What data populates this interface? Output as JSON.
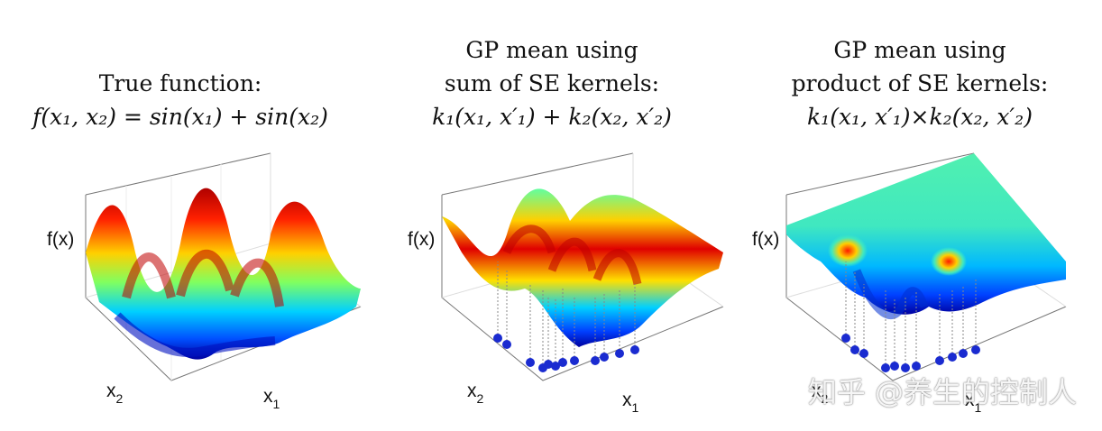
{
  "panels": [
    {
      "title_lines": [
        "True function:",
        "f(x₁, x₂) = sin(x₁) + sin(x₂)"
      ],
      "zlabel": "f(x)",
      "xlabel_base": "x",
      "xlabel_sub": "1",
      "ylabel_base": "x",
      "ylabel_sub": "2",
      "colors": [
        "#2a7bd8",
        "#e02020",
        "#f0a020"
      ]
    },
    {
      "title_lines": [
        "GP mean using",
        "sum of SE kernels:",
        "k₁(x₁, x′₁) + k₂(x₂, x′₂)"
      ],
      "zlabel": "f(x)",
      "xlabel_base": "x",
      "xlabel_sub": "1",
      "ylabel_base": "x",
      "ylabel_sub": "2",
      "colors": [
        "#2a7bd8",
        "#e02020",
        "#2030c0"
      ]
    },
    {
      "title_lines": [
        "GP mean using",
        "product of SE kernels:",
        "k₁(x₁, x′₁)×k₂(x₂, x′₂)"
      ],
      "zlabel": "f(x)",
      "xlabel_base": "x",
      "xlabel_sub": "1",
      "ylabel_base": "x",
      "ylabel_sub": "2",
      "colors": [
        "#49f0a8",
        "#e02020",
        "#2030c0"
      ]
    }
  ],
  "watermark": "知乎 @养生的控制人"
}
